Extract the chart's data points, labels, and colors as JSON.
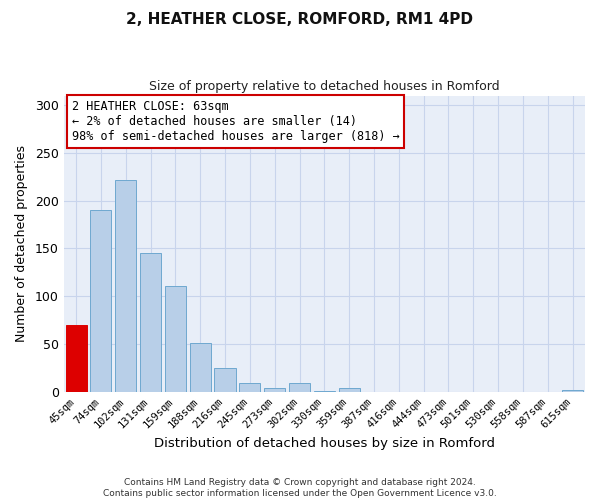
{
  "title": "2, HEATHER CLOSE, ROMFORD, RM1 4PD",
  "subtitle": "Size of property relative to detached houses in Romford",
  "xlabel": "Distribution of detached houses by size in Romford",
  "ylabel": "Number of detached properties",
  "footer_lines": [
    "Contains HM Land Registry data © Crown copyright and database right 2024.",
    "Contains public sector information licensed under the Open Government Licence v3.0."
  ],
  "bar_labels": [
    "45sqm",
    "74sqm",
    "102sqm",
    "131sqm",
    "159sqm",
    "188sqm",
    "216sqm",
    "245sqm",
    "273sqm",
    "302sqm",
    "330sqm",
    "359sqm",
    "387sqm",
    "416sqm",
    "444sqm",
    "473sqm",
    "501sqm",
    "530sqm",
    "558sqm",
    "587sqm",
    "615sqm"
  ],
  "bar_values": [
    70,
    190,
    222,
    145,
    111,
    51,
    25,
    9,
    4,
    9,
    1,
    4,
    0,
    0,
    0,
    0,
    0,
    0,
    0,
    0,
    2
  ],
  "bar_color": "#b8cfe8",
  "bar_edge_color": "#6fa8d0",
  "highlight_bar_index": 0,
  "highlight_color": "#dd0000",
  "highlight_edge_color": "#dd0000",
  "annotation_text": "2 HEATHER CLOSE: 63sqm\n← 2% of detached houses are smaller (14)\n98% of semi-detached houses are larger (818) →",
  "annotation_box_color": "#ffffff",
  "annotation_box_edge_color": "#cc0000",
  "ylim": [
    0,
    310
  ],
  "yticks": [
    0,
    50,
    100,
    150,
    200,
    250,
    300
  ],
  "bg_color": "#ffffff",
  "plot_bg_color": "#e8eef8",
  "grid_color": "#c8d4ec",
  "title_fontsize": 11,
  "subtitle_fontsize": 9
}
